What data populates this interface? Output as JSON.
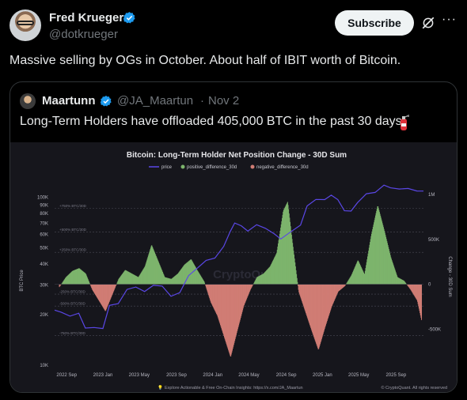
{
  "author": {
    "name": "Fred Krueger",
    "handle": "@dotkrueger"
  },
  "actions": {
    "subscribe_label": "Subscribe",
    "more_label": "···"
  },
  "tweet": {
    "text": "Massive selling by OGs in October. About half of IBIT worth of Bitcoin."
  },
  "quote": {
    "name": "Maartunn",
    "handle": "@JA_Maartun",
    "separator": "·",
    "date": "Nov 2",
    "text": "Long-Term Holders have offloaded 405,000 BTC in the past 30 days"
  },
  "colors": {
    "positive": "#7db46c",
    "negative": "#d07c74",
    "price": "#5a47e6",
    "accent_link": "#1d9bf0"
  },
  "icons": [
    "verified-badge-icon",
    "grok-icon",
    "more-icon",
    "fire-extinguisher-icon"
  ],
  "chart_data": {
    "type": "bar",
    "title": "Bitcoin: Long-Term Holder Net Position Change - 30D Sum",
    "legend": [
      "price",
      "positive_difference_30d",
      "negative_difference_30d"
    ],
    "left_axis_label": "BTC Price",
    "right_axis_label": "Change - 30D Sum",
    "left_ticks": [
      "100K",
      "90K",
      "80K",
      "70K",
      "60K",
      "50K",
      "40K",
      "30K",
      "20K",
      "10K"
    ],
    "left_ticks_log": [
      100000,
      90000,
      80000,
      70000,
      60000,
      50000,
      40000,
      30000,
      20000,
      10000
    ],
    "right_ticks": [
      "1M",
      "500K",
      "0",
      "-500K"
    ],
    "right_ticks_values": [
      1000000,
      500000,
      0,
      -500000
    ],
    "right_range": [
      -900000,
      1150000
    ],
    "left_range_log": [
      10000,
      125000
    ],
    "x_ticks": [
      "2022 Sep",
      "2023 Jan",
      "2023 May",
      "2023 Sep",
      "2024 Jan",
      "2024 May",
      "2024 Sep",
      "2025 Jan",
      "2025 May",
      "2025 Sep"
    ],
    "x_range_months": [
      2022.56,
      2025.92
    ],
    "ref_lines": [
      {
        "label": "+750% BTC/30D",
        "price": 86000
      },
      {
        "label": "+500% BTC/30D",
        "price": 62000
      },
      {
        "label": "+250% BTC/30D",
        "price": 47000
      },
      {
        "label": "-250% BTC/30D",
        "price": 26500
      },
      {
        "label": "-500% BTC/30D",
        "price": 22500
      },
      {
        "label": "-750% BTC/30D",
        "price": 15000
      }
    ],
    "ref_labels": [
      "+750% BTC/30D",
      "+500% BTC/30D",
      "+250% BTC/30D",
      "-250% BTC/30D",
      "-500% BTC/30D",
      "-750% BTC/30D"
    ],
    "net_position_30d": [
      [
        2022.6,
        -30000
      ],
      [
        2022.66,
        80000
      ],
      [
        2022.72,
        150000
      ],
      [
        2022.78,
        180000
      ],
      [
        2022.84,
        120000
      ],
      [
        2022.9,
        -60000
      ],
      [
        2022.96,
        -180000
      ],
      [
        2023.02,
        -300000
      ],
      [
        2023.08,
        -120000
      ],
      [
        2023.14,
        60000
      ],
      [
        2023.2,
        160000
      ],
      [
        2023.26,
        120000
      ],
      [
        2023.32,
        80000
      ],
      [
        2023.38,
        200000
      ],
      [
        2023.44,
        440000
      ],
      [
        2023.5,
        260000
      ],
      [
        2023.56,
        80000
      ],
      [
        2023.62,
        60000
      ],
      [
        2023.68,
        120000
      ],
      [
        2023.74,
        220000
      ],
      [
        2023.8,
        280000
      ],
      [
        2023.86,
        150000
      ],
      [
        2023.92,
        30000
      ],
      [
        2023.98,
        -200000
      ],
      [
        2024.04,
        -350000
      ],
      [
        2024.1,
        -580000
      ],
      [
        2024.16,
        -810000
      ],
      [
        2024.22,
        -520000
      ],
      [
        2024.28,
        -240000
      ],
      [
        2024.34,
        -60000
      ],
      [
        2024.4,
        80000
      ],
      [
        2024.46,
        120000
      ],
      [
        2024.52,
        200000
      ],
      [
        2024.58,
        350000
      ],
      [
        2024.64,
        820000
      ],
      [
        2024.68,
        920000
      ],
      [
        2024.72,
        500000
      ],
      [
        2024.78,
        -80000
      ],
      [
        2024.84,
        -300000
      ],
      [
        2024.9,
        -520000
      ],
      [
        2024.96,
        -730000
      ],
      [
        2025.02,
        -480000
      ],
      [
        2025.08,
        -250000
      ],
      [
        2025.14,
        -80000
      ],
      [
        2025.2,
        -20000
      ],
      [
        2025.26,
        100000
      ],
      [
        2025.32,
        270000
      ],
      [
        2025.38,
        110000
      ],
      [
        2025.44,
        540000
      ],
      [
        2025.5,
        880000
      ],
      [
        2025.56,
        600000
      ],
      [
        2025.62,
        300000
      ],
      [
        2025.68,
        80000
      ],
      [
        2025.74,
        40000
      ],
      [
        2025.8,
        -60000
      ],
      [
        2025.86,
        -180000
      ],
      [
        2025.9,
        -405000
      ]
    ],
    "price": [
      [
        2022.56,
        21500
      ],
      [
        2022.62,
        20500
      ],
      [
        2022.7,
        19800
      ],
      [
        2022.78,
        20200
      ],
      [
        2022.84,
        16800
      ],
      [
        2022.92,
        16600
      ],
      [
        2023.0,
        16700
      ],
      [
        2023.06,
        22500
      ],
      [
        2023.14,
        23500
      ],
      [
        2023.22,
        28000
      ],
      [
        2023.3,
        29500
      ],
      [
        2023.38,
        27200
      ],
      [
        2023.46,
        30200
      ],
      [
        2023.54,
        29300
      ],
      [
        2023.62,
        26000
      ],
      [
        2023.7,
        26800
      ],
      [
        2023.78,
        34500
      ],
      [
        2023.86,
        37500
      ],
      [
        2023.94,
        42500
      ],
      [
        2024.02,
        43000
      ],
      [
        2024.1,
        51500
      ],
      [
        2024.16,
        62000
      ],
      [
        2024.2,
        71000
      ],
      [
        2024.26,
        67000
      ],
      [
        2024.32,
        63500
      ],
      [
        2024.4,
        68000
      ],
      [
        2024.48,
        66000
      ],
      [
        2024.56,
        60000
      ],
      [
        2024.62,
        57000
      ],
      [
        2024.7,
        61000
      ],
      [
        2024.8,
        69000
      ],
      [
        2024.86,
        88000
      ],
      [
        2024.94,
        98000
      ],
      [
        2025.02,
        96000
      ],
      [
        2025.08,
        104000
      ],
      [
        2025.14,
        96000
      ],
      [
        2025.2,
        84000
      ],
      [
        2025.26,
        82000
      ],
      [
        2025.32,
        94000
      ],
      [
        2025.4,
        104000
      ],
      [
        2025.48,
        108000
      ],
      [
        2025.56,
        117000
      ],
      [
        2025.62,
        115000
      ],
      [
        2025.7,
        111000
      ],
      [
        2025.78,
        114000
      ],
      [
        2025.86,
        108000
      ],
      [
        2025.92,
        110000
      ]
    ],
    "footer_left": "Explore Actionable & Free On-Chain Insights: https://x.com/JA_Maartun",
    "footer_right": "© CryptoQuant. All rights reserved",
    "watermark": "CryptoQuant"
  }
}
